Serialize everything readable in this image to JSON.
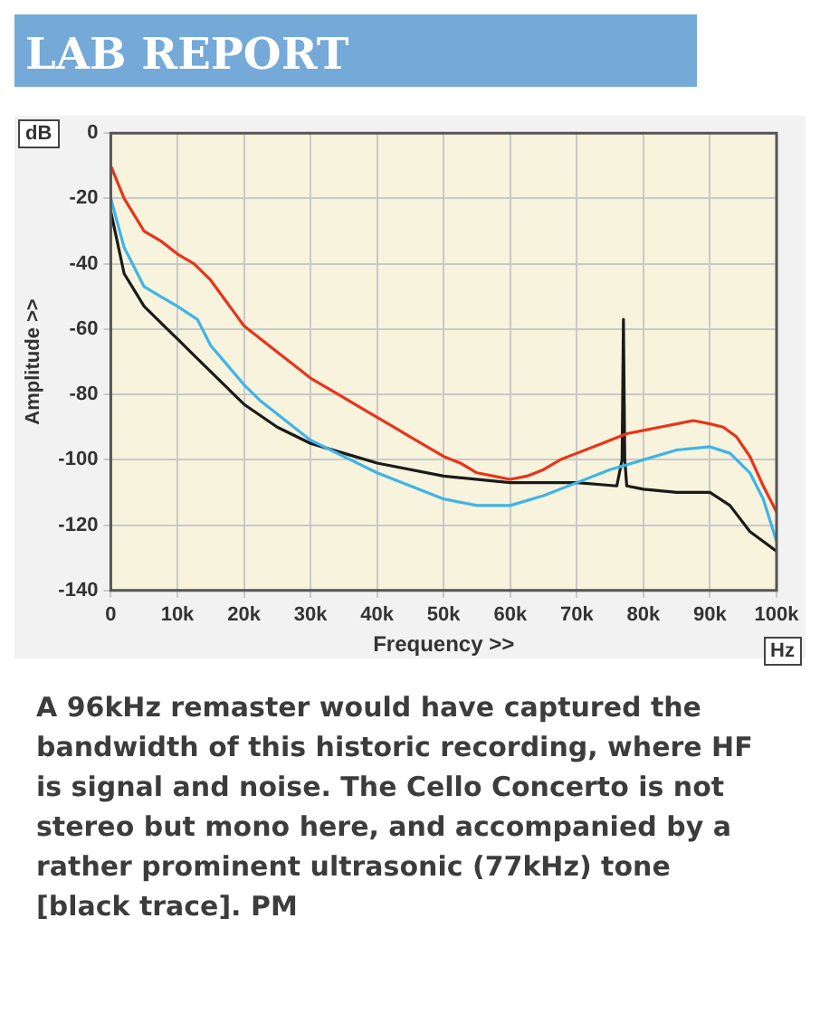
{
  "chart_data": {
    "type": "line",
    "title": "LAB REPORT",
    "xlabel": "Frequency >>",
    "ylabel": "Amplitude >>",
    "annotations": [
      "dB",
      "Hz",
      "A 96kHz remaster would have captured the bandwidth of this historic recording, where HF is signal and noise. The Cello Concerto is not stereo but mono here, and accompanied by a rather prominent ultrasonic (77kHz) tone [black trace]. PM"
    ],
    "xlim": [
      0,
      100000
    ],
    "xticks": [
      0,
      {
        "value": 10000,
        "label": "10k"
      },
      {
        "value": 20000,
        "label": "20k"
      },
      {
        "value": 30000,
        "label": "30k"
      },
      {
        "value": 40000,
        "label": "40k"
      },
      {
        "value": 50000,
        "label": "50k"
      },
      {
        "value": 60000,
        "label": "60k"
      },
      {
        "value": 70000,
        "label": "70k"
      },
      {
        "value": 80000,
        "label": "80k"
      },
      {
        "value": 90000,
        "label": "90k"
      },
      {
        "value": 100000,
        "label": "100k"
      }
    ],
    "ylim": [
      -140,
      0
    ],
    "yticks": [
      -140,
      -120,
      -100,
      -80,
      -60,
      -40,
      -20,
      0
    ],
    "grid": true,
    "marker": "none",
    "series": [
      {
        "color": "#e8341c",
        "x": [
          0,
          2000,
          5000,
          7500,
          10000,
          12500,
          15000,
          17500,
          20000,
          22500,
          25000,
          27500,
          30000,
          32500,
          35000,
          37500,
          40000,
          42500,
          45000,
          47500,
          50000,
          52500,
          55000,
          57500,
          60000,
          62500,
          65000,
          67500,
          70000,
          72500,
          75000,
          77500,
          80000,
          82500,
          85000,
          87500,
          90000,
          92000,
          94000,
          96000,
          98000,
          100000
        ],
        "values": [
          -10,
          -20,
          -30,
          -33,
          -37,
          -40,
          -45,
          -52,
          -59,
          -63,
          -67,
          -71,
          -75,
          -78,
          -81,
          -84,
          -87,
          -90,
          -93,
          -96,
          -99,
          -101,
          -104,
          -105,
          -106,
          -105,
          -103,
          -100,
          -98,
          -96,
          -94,
          -92,
          -91,
          -90,
          -89,
          -88,
          -89,
          -90,
          -93,
          -99,
          -108,
          -116
        ]
      },
      {
        "color": "#3fb4e6",
        "x": [
          0,
          2000,
          5000,
          7500,
          10000,
          13000,
          15000,
          17500,
          20000,
          22500,
          25000,
          27500,
          30000,
          35000,
          40000,
          45000,
          50000,
          55000,
          60000,
          65000,
          70000,
          75000,
          80000,
          85000,
          90000,
          93000,
          96000,
          98000,
          100000
        ],
        "values": [
          -20,
          -35,
          -47,
          -50,
          -53,
          -57,
          -65,
          -71,
          -77,
          -82,
          -86,
          -90,
          -94,
          -99,
          -104,
          -108,
          -112,
          -114,
          -114,
          -111,
          -107,
          -103,
          -100,
          -97,
          -96,
          -98,
          -104,
          -112,
          -125
        ]
      },
      {
        "color": "#1a1a1a",
        "x": [
          0,
          2000,
          5000,
          8000,
          10000,
          12500,
          15000,
          17500,
          20000,
          25000,
          30000,
          35000,
          40000,
          50000,
          60000,
          70000,
          76000,
          76800,
          77000,
          77200,
          77500,
          80000,
          85000,
          90000,
          93000,
          96000,
          100000
        ],
        "values": [
          -24,
          -43,
          -53,
          -59,
          -63,
          -68,
          -73,
          -78,
          -83,
          -90,
          -95,
          -98,
          -101,
          -105,
          -107,
          -107,
          -108,
          -100,
          -57,
          -100,
          -108,
          -109,
          -110,
          -110,
          -114,
          -122,
          -128
        ]
      }
    ]
  }
}
